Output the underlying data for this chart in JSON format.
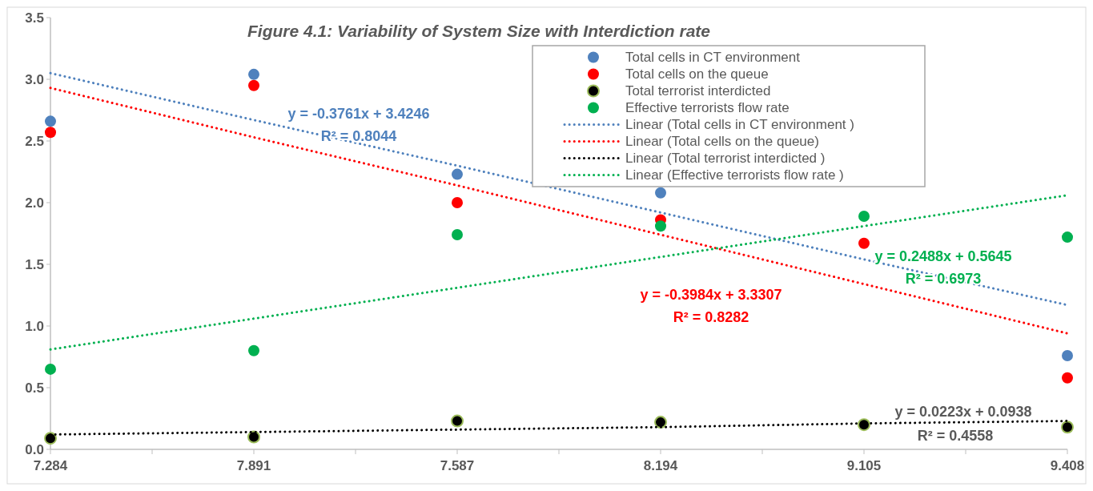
{
  "chart_data": {
    "type": "scatter",
    "title": "Figure 4.1: Variability of System Size with Interdiction rate",
    "categories": [
      "7.284",
      "7.891",
      "7.587",
      "8.194",
      "9.105",
      "9.408"
    ],
    "ylim": [
      0,
      3.5
    ],
    "yticks": [
      {
        "value": 0,
        "label": "0.0"
      },
      {
        "value": 0.5,
        "label": "0.5"
      },
      {
        "value": 1,
        "label": "1.0"
      },
      {
        "value": 1.5,
        "label": "1.5"
      },
      {
        "value": 2,
        "label": "2.0"
      },
      {
        "value": 2.5,
        "label": "2.5"
      },
      {
        "value": 3,
        "label": "3.0"
      },
      {
        "value": 3.5,
        "label": "3.5"
      }
    ],
    "grid": false,
    "legend": "top right",
    "marker": "circle",
    "series": [
      {
        "name": "Total cells in CT environment",
        "color": "#4f81bd",
        "values": [
          2.66,
          3.04,
          2.23,
          2.08,
          null,
          0.76
        ]
      },
      {
        "name": "Total cells on the queue",
        "color": "#ff0000",
        "values": [
          2.57,
          2.95,
          2.0,
          1.86,
          1.67,
          0.58
        ]
      },
      {
        "name": "Total terrorist interdicted",
        "color": "#000000",
        "values": [
          0.09,
          0.1,
          0.23,
          0.22,
          0.2,
          0.18
        ]
      },
      {
        "name": "Effective terrorists flow rate",
        "color": "#00b050",
        "values": [
          0.65,
          0.8,
          1.74,
          1.81,
          1.89,
          1.72
        ]
      },
      {
        "name": "Linear (Total cells in CT environment )",
        "type": "line",
        "line_style": "dotted",
        "marker": "none",
        "color": "#4f81bd",
        "values": [
          3.05,
          2.67,
          2.3,
          1.92,
          1.54,
          1.17
        ]
      },
      {
        "name": "Linear (Total cells on the queue)",
        "type": "line",
        "line_style": "dotted",
        "marker": "none",
        "color": "#ff0000",
        "values": [
          2.93,
          2.53,
          2.14,
          1.74,
          1.34,
          0.94
        ]
      },
      {
        "name": "Linear (Total terrorist interdicted )",
        "type": "line",
        "line_style": "dotted",
        "marker": "none",
        "color": "#000000",
        "values": [
          0.12,
          0.14,
          0.16,
          0.18,
          0.21,
          0.23
        ]
      },
      {
        "name": "Linear (Effective terrorists flow rate  )",
        "type": "line",
        "line_style": "dotted",
        "marker": "none",
        "color": "#00b050",
        "values": [
          0.81,
          1.06,
          1.31,
          1.56,
          1.81,
          2.06
        ]
      }
    ],
    "annotations": [
      "y = -0.3761x + 3.4246",
      "R² = 0.8044",
      "y = -0.3984x + 3.3307",
      "R² = 0.8282",
      "y = 0.0223x + 0.0938",
      "R² = 0.4558",
      "y = 0.2488x + 0.5645",
      "R² = 0.6973"
    ]
  }
}
